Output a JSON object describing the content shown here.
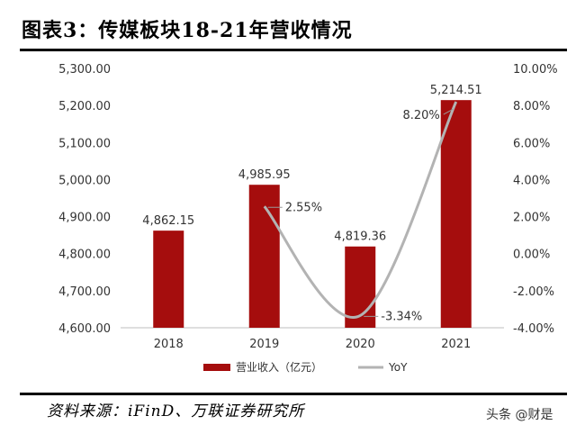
{
  "title": "图表3：传媒板块18-21年营收情况",
  "source": "资料来源：iFinD、万联证券研究所",
  "watermark": "头条 @财是",
  "colors": {
    "bar": "#a50d0d",
    "line": "#b3b3b3"
  },
  "chart_data": {
    "type": "bar",
    "categories": [
      "2018",
      "2019",
      "2020",
      "2021"
    ],
    "series": [
      {
        "name": "营业收入（亿元）",
        "type": "bar",
        "axis": "left",
        "values": [
          4862.15,
          4985.95,
          4819.36,
          5214.51
        ],
        "labels": [
          "4,862.15",
          "4,985.95",
          "4,819.36",
          "5,214.51"
        ]
      },
      {
        "name": "YoY",
        "type": "line",
        "axis": "right",
        "smooth": true,
        "values": [
          null,
          2.55,
          -3.34,
          8.2
        ],
        "labels": [
          "",
          "2.55%",
          "-3.34%",
          "8.20%"
        ]
      }
    ],
    "y_left": {
      "min": 4600,
      "max": 5300,
      "ticks": [
        "4,600.00",
        "4,700.00",
        "4,800.00",
        "4,900.00",
        "5,000.00",
        "5,100.00",
        "5,200.00",
        "5,300.00"
      ]
    },
    "y_right": {
      "min": -4,
      "max": 10,
      "ticks": [
        "-4.00%",
        "-2.00%",
        "0.00%",
        "2.00%",
        "4.00%",
        "6.00%",
        "8.00%",
        "10.00%"
      ]
    },
    "legend_position": "bottom",
    "grid": false
  }
}
